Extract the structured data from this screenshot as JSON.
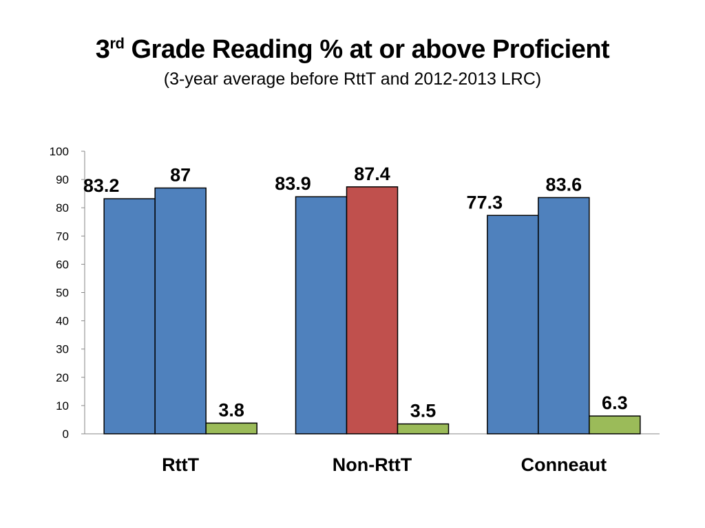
{
  "title": {
    "prefix": "3",
    "sup": "rd",
    "rest": " Grade Reading % at or above Proficient"
  },
  "subtitle": "(3-year average before RttT and 2012-2013 LRC)",
  "chart_data": {
    "type": "bar",
    "categories": [
      "RttT",
      "Non-RttT",
      "Conneaut"
    ],
    "series": [
      {
        "values": [
          83.2,
          83.9,
          77.3
        ]
      },
      {
        "values": [
          87,
          87.4,
          83.6
        ]
      },
      {
        "values": [
          3.8,
          3.5,
          6.3
        ]
      }
    ],
    "bar_colors": [
      [
        "#4f81bd",
        "#4f81bd",
        "#4f81bd"
      ],
      [
        "#4f81bd",
        "#c0504d",
        "#4f81bd"
      ],
      [
        "#9bbb59",
        "#9bbb59",
        "#9bbb59"
      ]
    ],
    "ylim": [
      0,
      100
    ],
    "yticks": [
      0,
      10,
      20,
      30,
      40,
      50,
      60,
      70,
      80,
      90,
      100
    ],
    "grid": false,
    "legend": "none"
  }
}
